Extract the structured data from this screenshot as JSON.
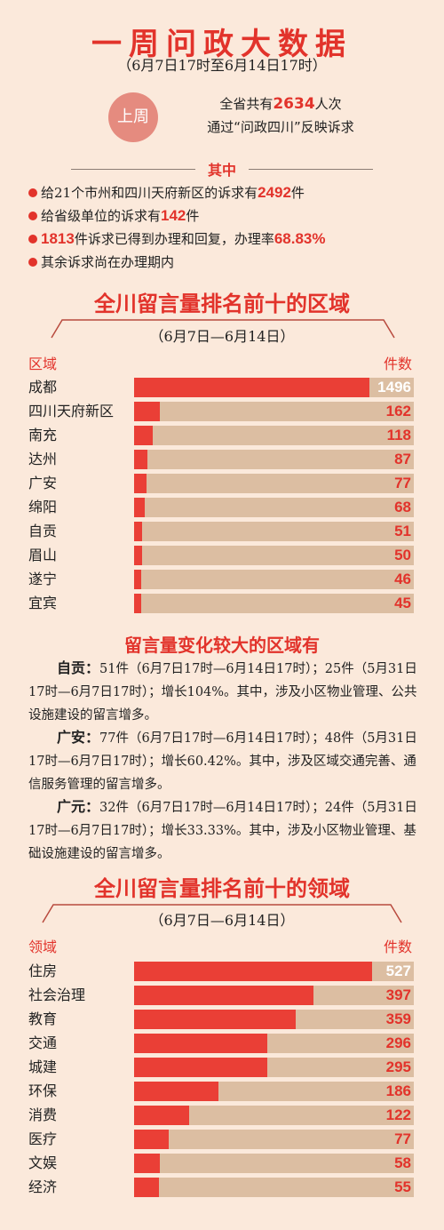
{
  "header": {
    "title": "一周问政大数据",
    "subtitle": "（6月7日17时至6月14日17时）"
  },
  "summary": {
    "badge": "上周",
    "line1_pre": "全省共有",
    "line1_num": "2634",
    "line1_post": "人次",
    "line2": "通过“问政四川”反映诉求"
  },
  "separator": "其中",
  "bullets": [
    {
      "pre": "给21个市州和四川天府新区的诉求有",
      "num": "2492",
      "post": "件"
    },
    {
      "pre": "给省级单位的诉求有",
      "num": "142",
      "post": "件"
    },
    {
      "pre": "",
      "num": "1813",
      "post": "件诉求已得到办理和回复，办理率",
      "num2": "68.83%"
    },
    {
      "pre": "其余诉求尚在办理期内",
      "num": "",
      "post": ""
    }
  ],
  "section1": {
    "title": "全川留言量排名前十的区域",
    "range": "（6月7日—6月14日）",
    "col_left": "区域",
    "col_right": "件数"
  },
  "section2": {
    "title": "全川留言量排名前十的领域",
    "range": "（6月7日—6月14日）",
    "col_left": "领域",
    "col_right": "件数"
  },
  "chart_data": [
    {
      "type": "bar",
      "title": "全川留言量排名前十的区域",
      "xlabel": "区域",
      "ylabel": "件数",
      "categories": [
        "成都",
        "四川天府新区",
        "南充",
        "达州",
        "广安",
        "绵阳",
        "自贡",
        "眉山",
        "遂宁",
        "宜宾"
      ],
      "values": [
        1496,
        162,
        118,
        87,
        77,
        68,
        51,
        50,
        46,
        45
      ],
      "xlim": [
        0,
        1780
      ]
    },
    {
      "type": "bar",
      "title": "全川留言量排名前十的领域",
      "xlabel": "领域",
      "ylabel": "件数",
      "categories": [
        "住房",
        "社会治理",
        "教育",
        "交通",
        "城建",
        "环保",
        "消费",
        "医疗",
        "文娱",
        "经济"
      ],
      "values": [
        527,
        397,
        359,
        296,
        295,
        186,
        122,
        77,
        58,
        55
      ],
      "xlim": [
        0,
        620
      ]
    }
  ],
  "changes": {
    "title": "留言量变化较大的区域有",
    "items": [
      {
        "name": "自贡：",
        "text": "51件（6月7日17时—6月14日17时）；25件（5月31日17时—6月7日17时）；增长104%。其中，涉及小区物业管理、公共设施建设的留言增多。"
      },
      {
        "name": "广安：",
        "text": "77件（6月7日17时—6月14日17时）；48件（5月31日17时—6月7日17时）；增长60.42%。其中，涉及区域交通完善、通信服务管理的留言增多。"
      },
      {
        "name": "广元：",
        "text": "32件（6月7日17时—6月14日17时）；24件（5月31日17时—6月7日17时）；增长33.33%。其中，涉及小区物业管理、基础设施建设的留言增多。"
      }
    ]
  },
  "colors": {
    "accent": "#e2332b",
    "bar": "#ea3f36",
    "track": "#dcbea2",
    "background": "#fbe9db"
  }
}
